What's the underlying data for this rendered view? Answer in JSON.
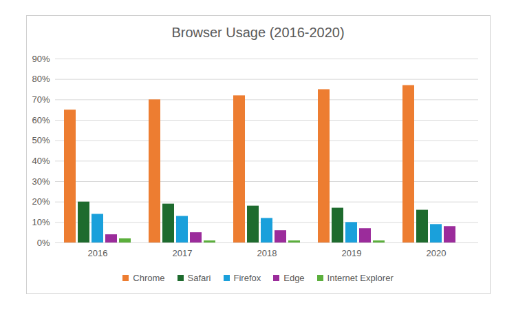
{
  "chart_data": {
    "type": "bar",
    "title": "Browser Usage (2016-2020)",
    "categories": [
      "2016",
      "2017",
      "2018",
      "2019",
      "2020"
    ],
    "series": [
      {
        "name": "Chrome",
        "color": "#ED7D31",
        "values": [
          65,
          70,
          72,
          75,
          77
        ]
      },
      {
        "name": "Safari",
        "color": "#1E6B2E",
        "values": [
          20,
          19,
          18,
          17,
          16
        ]
      },
      {
        "name": "Firefox",
        "color": "#1AA0DB",
        "values": [
          14,
          13,
          12,
          10,
          9
        ]
      },
      {
        "name": "Edge",
        "color": "#9B2C9B",
        "values": [
          4,
          5,
          6,
          7,
          8
        ]
      },
      {
        "name": "Internet Explorer",
        "color": "#5BAF3C",
        "values": [
          2,
          1,
          1,
          1,
          null
        ]
      }
    ],
    "ylim": [
      0,
      90
    ],
    "yticks": [
      {
        "value": 0,
        "label": "0%"
      },
      {
        "value": 10,
        "label": "10%"
      },
      {
        "value": 20,
        "label": "20%"
      },
      {
        "value": 30,
        "label": "30%"
      },
      {
        "value": 40,
        "label": "40%"
      },
      {
        "value": 50,
        "label": "50%"
      },
      {
        "value": 60,
        "label": "60%"
      },
      {
        "value": 70,
        "label": "70%"
      },
      {
        "value": 80,
        "label": "80%"
      },
      {
        "value": 90,
        "label": "90%"
      }
    ],
    "grid": true,
    "legend": "bottom"
  }
}
